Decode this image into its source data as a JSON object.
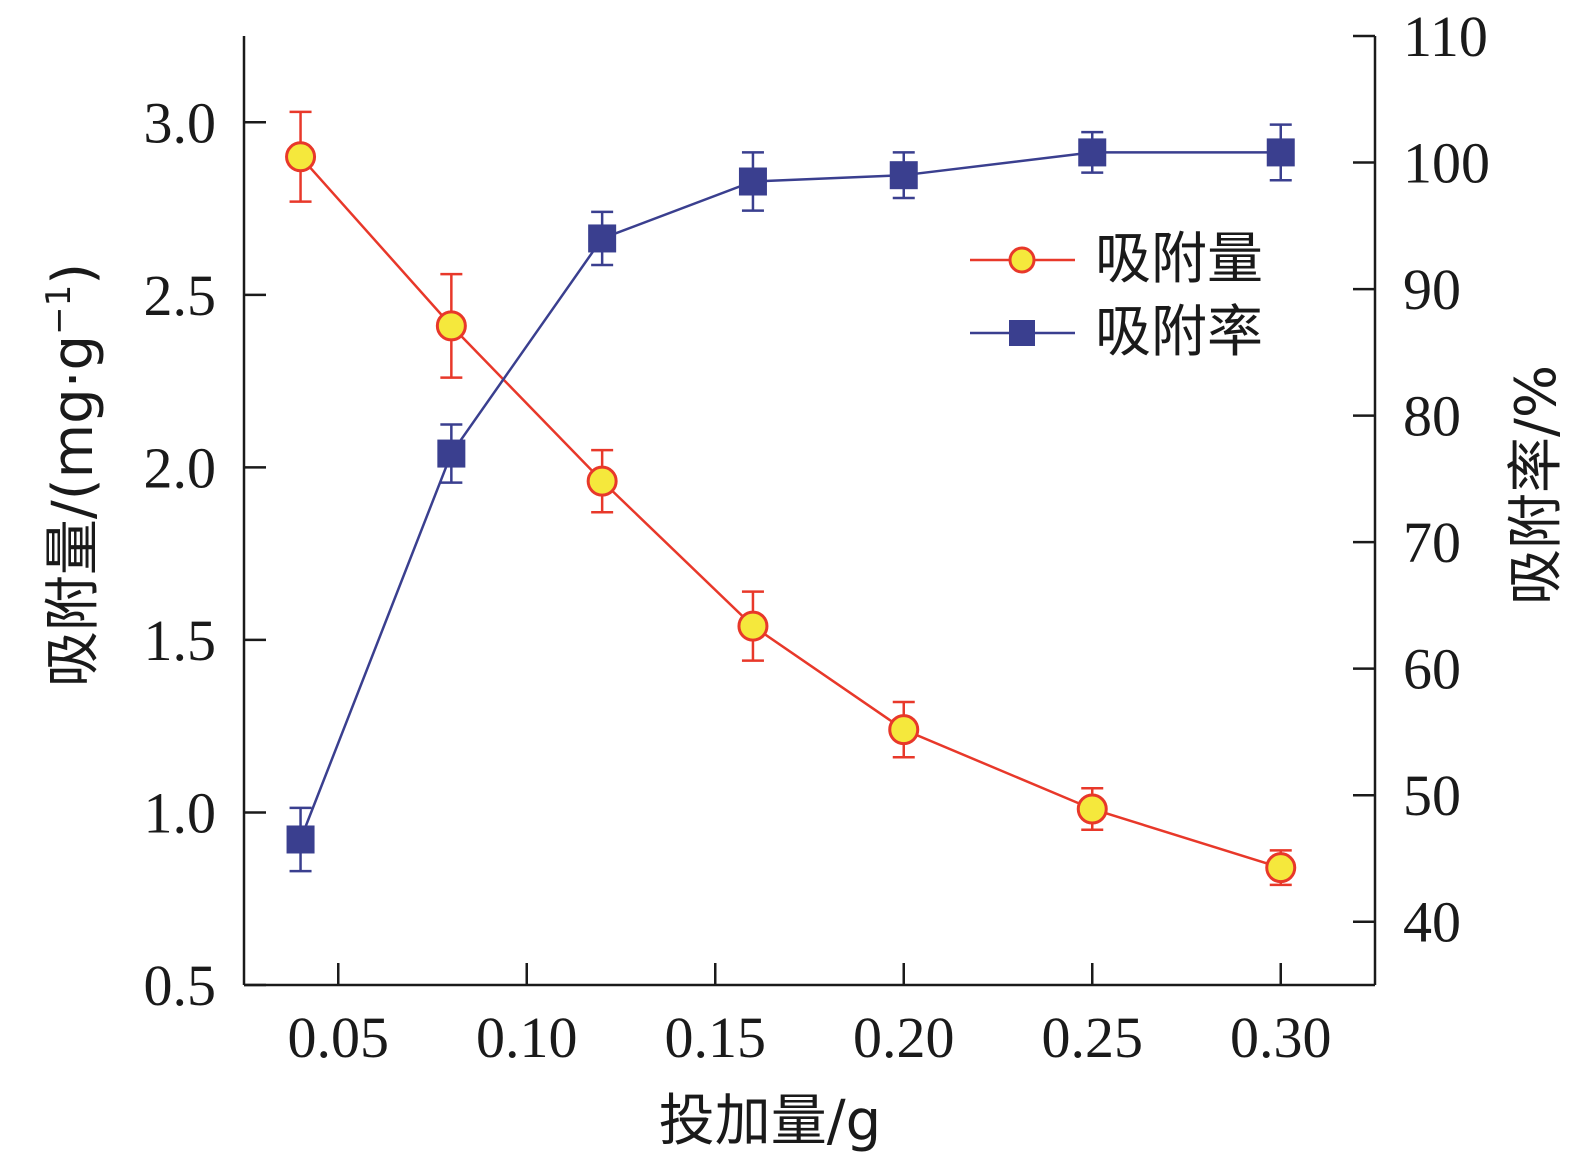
{
  "chart_data": {
    "type": "line",
    "x": [
      0.04,
      0.08,
      0.12,
      0.16,
      0.2,
      0.25,
      0.3
    ],
    "xlabel": "投加量/g",
    "x_ticks": [
      "0.05",
      "0.10",
      "0.15",
      "0.20",
      "0.25",
      "0.30"
    ],
    "x_tick_values": [
      0.05,
      0.1,
      0.15,
      0.2,
      0.25,
      0.3
    ],
    "xlim": [
      0.025,
      0.325
    ],
    "ylabel_left_main": "吸附量/(mg·g",
    "ylabel_left_sup": "−1",
    "ylabel_left_close": ")",
    "ylim_left": [
      0.5,
      3.25
    ],
    "y_ticks_left": [
      "0.5",
      "1.0",
      "1.5",
      "2.0",
      "2.5",
      "3.0"
    ],
    "ylabel_right": "吸附率/%",
    "ylim_right": [
      35,
      110
    ],
    "y_ticks_right": [
      "40",
      "50",
      "60",
      "70",
      "80",
      "90",
      "100",
      "110"
    ],
    "legend_position": "upper-right",
    "series": [
      {
        "name": "吸附量",
        "axis": "left",
        "values": [
          2.9,
          2.41,
          1.96,
          1.54,
          1.24,
          1.01,
          0.84
        ],
        "errors": [
          0.13,
          0.15,
          0.09,
          0.1,
          0.08,
          0.06,
          0.05
        ],
        "line_color": "#e8382a",
        "marker": "circle",
        "marker_fill": "#f5e83c",
        "marker_edge": "#e8382a"
      },
      {
        "name": "吸附率",
        "axis": "right",
        "values": [
          46.5,
          77.0,
          94.0,
          98.5,
          99.0,
          100.8,
          100.8
        ],
        "errors": [
          2.5,
          2.3,
          2.1,
          2.3,
          1.8,
          1.6,
          2.2
        ],
        "line_color": "#3a3f8f",
        "marker": "square",
        "marker_fill": "#3a3f8f",
        "marker_edge": "#3a3f8f"
      }
    ]
  }
}
